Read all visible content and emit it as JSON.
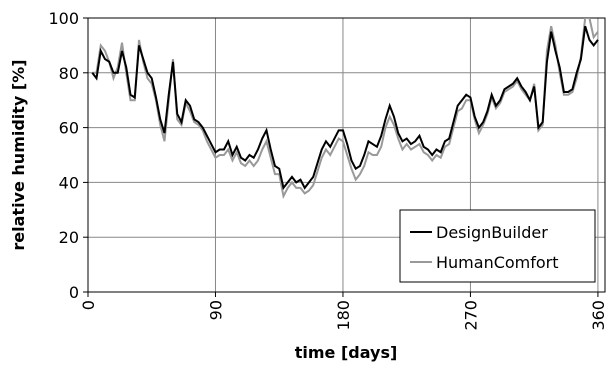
{
  "chart_data": {
    "type": "line",
    "x_label": "time [days]",
    "y_label": "relative humidity [%]",
    "x": [
      3,
      6,
      9,
      12,
      15,
      18,
      21,
      24,
      27,
      30,
      33,
      36,
      39,
      42,
      45,
      48,
      51,
      54,
      57,
      60,
      63,
      66,
      69,
      72,
      75,
      78,
      81,
      84,
      87,
      90,
      93,
      96,
      99,
      102,
      105,
      108,
      111,
      114,
      117,
      120,
      123,
      126,
      129,
      132,
      135,
      138,
      141,
      144,
      147,
      150,
      153,
      156,
      159,
      162,
      165,
      168,
      171,
      174,
      177,
      180,
      183,
      186,
      189,
      192,
      195,
      198,
      201,
      204,
      207,
      210,
      213,
      216,
      219,
      222,
      225,
      228,
      231,
      234,
      237,
      240,
      243,
      246,
      249,
      252,
      255,
      258,
      261,
      264,
      267,
      270,
      273,
      276,
      279,
      282,
      285,
      288,
      291,
      294,
      297,
      300,
      303,
      306,
      309,
      312,
      315,
      318,
      321,
      324,
      327,
      330,
      333,
      336,
      339,
      342,
      345,
      348,
      351,
      354,
      357,
      360
    ],
    "series": [
      {
        "name": "DesignBuilder",
        "color": "#000000",
        "values": [
          80,
          78,
          88,
          85,
          84,
          80,
          80,
          88,
          82,
          72,
          71,
          90,
          85,
          80,
          78,
          71,
          63,
          58,
          72,
          84,
          65,
          62,
          70,
          68,
          63,
          62,
          60,
          57,
          54,
          51,
          52,
          52,
          55,
          50,
          53,
          49,
          48,
          50,
          49,
          52,
          56,
          59,
          52,
          46,
          45,
          38,
          40,
          42,
          40,
          41,
          38,
          40,
          42,
          47,
          52,
          55,
          53,
          56,
          59,
          59,
          54,
          48,
          45,
          46,
          50,
          55,
          54,
          53,
          57,
          63,
          68,
          64,
          58,
          55,
          56,
          54,
          55,
          57,
          53,
          52,
          50,
          52,
          51,
          55,
          56,
          62,
          68,
          70,
          72,
          71,
          64,
          60,
          62,
          66,
          72,
          68,
          70,
          74,
          75,
          76,
          78,
          75,
          73,
          70,
          75,
          60,
          62,
          84,
          95,
          88,
          82,
          73,
          73,
          74,
          80,
          85,
          97,
          92,
          90,
          92
        ]
      },
      {
        "name": "HumanComfort",
        "color": "#999999",
        "values": [
          80,
          80,
          90,
          88,
          84,
          78,
          82,
          91,
          80,
          70,
          70,
          92,
          84,
          78,
          76,
          70,
          61,
          55,
          70,
          85,
          63,
          61,
          69,
          66,
          62,
          61,
          59,
          55,
          52,
          49,
          50,
          50,
          52,
          48,
          51,
          47,
          46,
          48,
          46,
          48,
          52,
          55,
          49,
          43,
          43,
          35,
          38,
          40,
          38,
          38,
          36,
          37,
          39,
          44,
          49,
          52,
          50,
          53,
          56,
          55,
          50,
          45,
          41,
          43,
          46,
          51,
          50,
          50,
          53,
          60,
          64,
          61,
          56,
          52,
          54,
          52,
          53,
          54,
          51,
          50,
          48,
          50,
          49,
          53,
          54,
          60,
          66,
          67,
          70,
          70,
          63,
          58,
          61,
          65,
          71,
          67,
          69,
          73,
          74,
          75,
          77,
          74,
          72,
          70,
          76,
          59,
          61,
          88,
          97,
          90,
          80,
          72,
          72,
          73,
          78,
          86,
          100,
          100,
          93,
          95
        ]
      }
    ],
    "xlim": [
      0,
      365
    ],
    "xticks": [
      0,
      90,
      180,
      270,
      360
    ],
    "ylim": [
      0,
      100
    ],
    "yticks": [
      0,
      20,
      40,
      60,
      80,
      100
    ],
    "grid": true,
    "legend": "lower right"
  }
}
